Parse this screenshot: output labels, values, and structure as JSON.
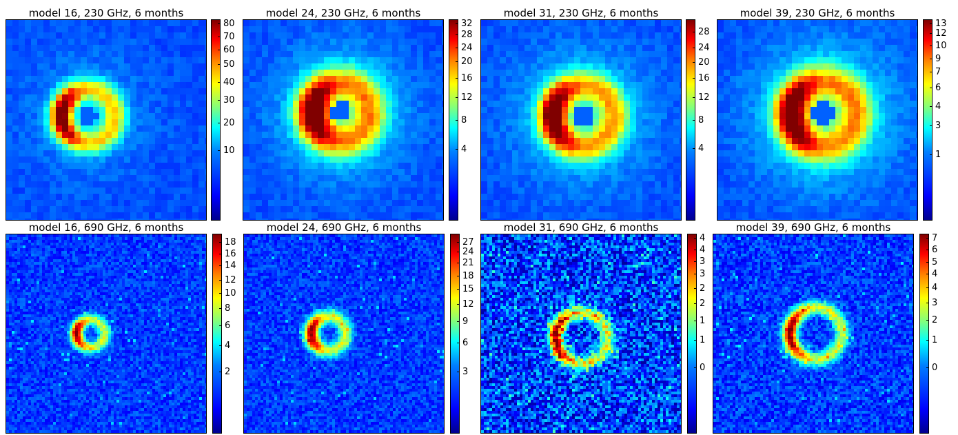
{
  "chart_data": [
    {
      "type": "heatmap",
      "title": "model 16, 230 GHz, 6 months",
      "colorbar_ticks": [
        "80",
        "70",
        "60",
        "50",
        "40",
        "30",
        "20",
        "10"
      ],
      "colorbar_tick_pos": [
        0.98,
        0.914,
        0.848,
        0.776,
        0.69,
        0.6,
        0.485,
        0.348
      ],
      "colormap": "jet",
      "image": {
        "kind": "lowres",
        "cx": 0.4,
        "cy": 0.47,
        "r": 0.13,
        "thick": 0.055,
        "bright_side": "left",
        "cell": 9,
        "halo": 0.25
      }
    },
    {
      "type": "heatmap",
      "title": "model 24, 230 GHz, 6 months",
      "colorbar_ticks": [
        "32",
        "28",
        "24",
        "20",
        "16",
        "12",
        "8",
        "4"
      ],
      "colorbar_tick_pos": [
        0.98,
        0.923,
        0.86,
        0.792,
        0.71,
        0.612,
        0.5,
        0.355
      ],
      "colormap": "jet",
      "image": {
        "kind": "lowres",
        "cx": 0.48,
        "cy": 0.45,
        "r": 0.14,
        "thick": 0.08,
        "bright_side": "left",
        "cell": 9,
        "halo": 0.55
      }
    },
    {
      "type": "heatmap",
      "title": "model 31, 230 GHz, 6 months",
      "colorbar_ticks": [
        "28",
        "24",
        "20",
        "16",
        "12",
        "8",
        "4"
      ],
      "colorbar_tick_pos": [
        0.94,
        0.86,
        0.788,
        0.708,
        0.612,
        0.5,
        0.358
      ],
      "colormap": "jet",
      "image": {
        "kind": "lowres",
        "cx": 0.5,
        "cy": 0.47,
        "r": 0.15,
        "thick": 0.07,
        "bright_side": "left",
        "cell": 9,
        "halo": 0.45
      }
    },
    {
      "type": "heatmap",
      "title": "model 39, 230 GHz, 6 months",
      "colorbar_ticks": [
        "13",
        "12",
        "10",
        "9",
        "7",
        "6",
        "4",
        "3",
        "1"
      ],
      "colorbar_tick_pos": [
        0.98,
        0.93,
        0.87,
        0.806,
        0.74,
        0.66,
        0.57,
        0.472,
        0.33
      ],
      "colormap": "jet",
      "image": {
        "kind": "lowres",
        "cx": 0.52,
        "cy": 0.46,
        "r": 0.16,
        "thick": 0.08,
        "bright_side": "left",
        "cell": 9,
        "halo": 0.55
      }
    },
    {
      "type": "heatmap",
      "title": "model 16, 690 GHz, 6 months",
      "colorbar_ticks": [
        "18",
        "16",
        "14",
        "12",
        "10",
        "8",
        "6",
        "4",
        "2"
      ],
      "colorbar_tick_pos": [
        0.96,
        0.9,
        0.84,
        0.77,
        0.704,
        0.626,
        0.542,
        0.442,
        0.31
      ],
      "colormap": "jet",
      "image": {
        "kind": "hires",
        "cx": 0.42,
        "cy": 0.5,
        "r": 0.07,
        "thick": 0.03,
        "bright_side": "left",
        "cell": 4,
        "noise": 0.12
      }
    },
    {
      "type": "heatmap",
      "title": "model 24, 690 GHz, 6 months",
      "colorbar_ticks": [
        "27",
        "24",
        "21",
        "18",
        "15",
        "12",
        "9",
        "6",
        "3"
      ],
      "colorbar_tick_pos": [
        0.96,
        0.91,
        0.856,
        0.79,
        0.724,
        0.648,
        0.562,
        0.456,
        0.31
      ],
      "colormap": "jet",
      "image": {
        "kind": "hires",
        "cx": 0.42,
        "cy": 0.5,
        "r": 0.085,
        "thick": 0.035,
        "bright_side": "left",
        "cell": 4,
        "noise": 0.12
      }
    },
    {
      "type": "heatmap",
      "title": "model 31, 690 GHz, 6 months",
      "colorbar_ticks": [
        "4",
        "4",
        "3",
        "3",
        "2",
        "2",
        "1",
        "1",
        "0"
      ],
      "colorbar_tick_pos": [
        0.98,
        0.92,
        0.862,
        0.8,
        0.728,
        0.652,
        0.566,
        0.47,
        0.33
      ],
      "colormap": "jet",
      "image": {
        "kind": "hires",
        "cx": 0.5,
        "cy": 0.52,
        "r": 0.13,
        "thick": 0.035,
        "bright_side": "left",
        "cell": 4,
        "noise": 0.3
      }
    },
    {
      "type": "heatmap",
      "title": "model 39, 690 GHz, 6 months",
      "colorbar_ticks": [
        "7",
        "6",
        "5",
        "4",
        "4",
        "3",
        "2",
        "1",
        "0"
      ],
      "colorbar_tick_pos": [
        0.98,
        0.92,
        0.86,
        0.8,
        0.73,
        0.656,
        0.568,
        0.47,
        0.33
      ],
      "colormap": "jet",
      "image": {
        "kind": "hires",
        "cx": 0.51,
        "cy": 0.5,
        "r": 0.13,
        "thick": 0.035,
        "bright_side": "left",
        "cell": 4,
        "noise": 0.15
      }
    }
  ]
}
